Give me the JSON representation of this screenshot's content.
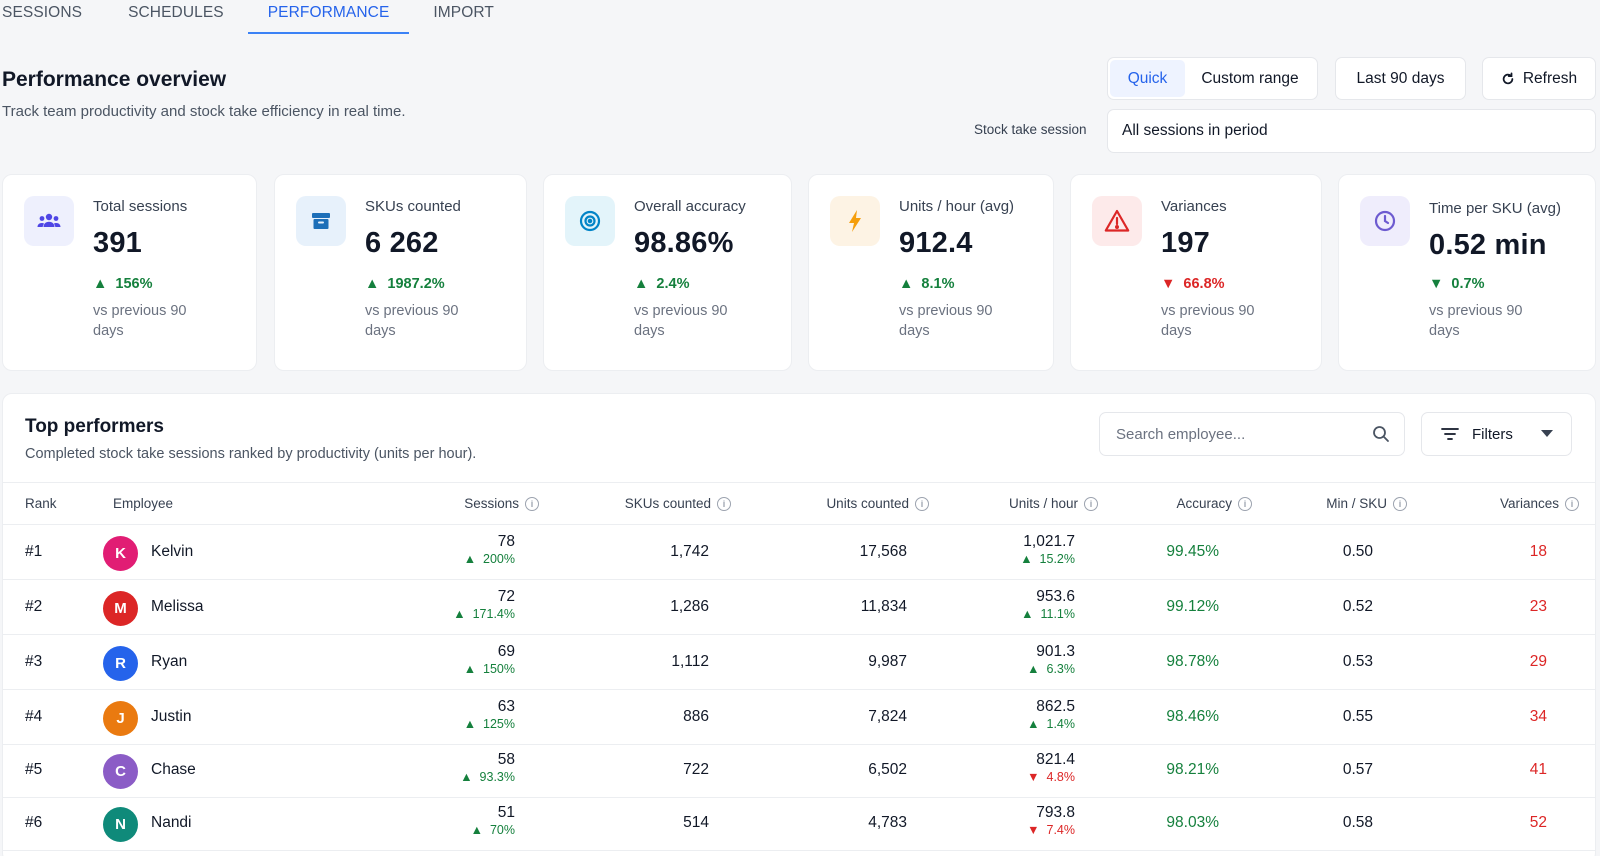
{
  "tabs": [
    "SESSIONS",
    "SCHEDULES",
    "PERFORMANCE",
    "IMPORT"
  ],
  "header": {
    "title": "Performance overview",
    "subtitle": "Track team productivity and stock take efficiency in real time.",
    "quick_label": "Quick",
    "custom_label": "Custom range",
    "period_label": "Last 90 days",
    "refresh_label": "Refresh",
    "session_label": "Stock take session",
    "session_value": "All sessions in period"
  },
  "kpis": [
    {
      "label": "Total sessions",
      "value": "391",
      "delta": "156%",
      "direction": "up",
      "note": "vs previous 90 days",
      "icon": "users-icon"
    },
    {
      "label": "SKUs counted",
      "value": "6 262",
      "delta": "1987.2%",
      "direction": "up",
      "note": "vs previous 90 days",
      "icon": "archive-box-icon"
    },
    {
      "label": "Overall accuracy",
      "value": "98.86%",
      "delta": "2.4%",
      "direction": "up",
      "note": "vs previous 90 days",
      "icon": "target-icon"
    },
    {
      "label": "Units / hour (avg)",
      "value": "912.4",
      "delta": "8.1%",
      "direction": "up",
      "note": "vs previous 90 days",
      "icon": "lightning-icon"
    },
    {
      "label": "Variances",
      "value": "197",
      "delta": "66.8%",
      "direction": "down",
      "note": "vs previous 90 days",
      "icon": "warning-icon"
    },
    {
      "label": "Time per SKU (avg)",
      "value": "0.52 min",
      "delta": "0.7%",
      "direction": "down",
      "note": "vs previous 90 days",
      "icon": "clock-icon"
    }
  ],
  "top_performers": {
    "title": "Top performers",
    "subtitle": "Completed stock take sessions ranked by productivity (units per hour).",
    "search_placeholder": "Search employee...",
    "filters_label": "Filters",
    "columns": [
      "Rank",
      "Employee",
      "Sessions",
      "SKUs counted",
      "Units counted",
      "Units / hour",
      "Accuracy",
      "Min / SKU",
      "Variances"
    ],
    "rows": [
      {
        "rank": "#1",
        "initial": "K",
        "name": "Kelvin",
        "color": "#e11d74",
        "sessions": "78",
        "sessions_delta": "200%",
        "sessions_dir": "up",
        "skus": "1,742",
        "units": "17,568",
        "uph": "1,021.7",
        "uph_delta": "15.2%",
        "uph_dir": "up",
        "accuracy": "99.45%",
        "min_sku": "0.50",
        "variances": "18"
      },
      {
        "rank": "#2",
        "initial": "M",
        "name": "Melissa",
        "color": "#dc2626",
        "sessions": "72",
        "sessions_delta": "171.4%",
        "sessions_dir": "up",
        "skus": "1,286",
        "units": "11,834",
        "uph": "953.6",
        "uph_delta": "11.1%",
        "uph_dir": "up",
        "accuracy": "99.12%",
        "min_sku": "0.52",
        "variances": "23"
      },
      {
        "rank": "#3",
        "initial": "R",
        "name": "Ryan",
        "color": "#2563eb",
        "sessions": "69",
        "sessions_delta": "150%",
        "sessions_dir": "up",
        "skus": "1,112",
        "units": "9,987",
        "uph": "901.3",
        "uph_delta": "6.3%",
        "uph_dir": "up",
        "accuracy": "98.78%",
        "min_sku": "0.53",
        "variances": "29"
      },
      {
        "rank": "#4",
        "initial": "J",
        "name": "Justin",
        "color": "#ea7a10",
        "sessions": "63",
        "sessions_delta": "125%",
        "sessions_dir": "up",
        "skus": "886",
        "units": "7,824",
        "uph": "862.5",
        "uph_delta": "1.4%",
        "uph_dir": "up",
        "accuracy": "98.46%",
        "min_sku": "0.55",
        "variances": "34"
      },
      {
        "rank": "#5",
        "initial": "C",
        "name": "Chase",
        "color": "#8b5cc6",
        "sessions": "58",
        "sessions_delta": "93.3%",
        "sessions_dir": "up",
        "skus": "722",
        "units": "6,502",
        "uph": "821.4",
        "uph_delta": "4.8%",
        "uph_dir": "down",
        "accuracy": "98.21%",
        "min_sku": "0.57",
        "variances": "41"
      },
      {
        "rank": "#6",
        "initial": "N",
        "name": "Nandi",
        "color": "#0f8a7a",
        "sessions": "51",
        "sessions_delta": "70%",
        "sessions_dir": "up",
        "skus": "514",
        "units": "4,783",
        "uph": "793.8",
        "uph_delta": "7.4%",
        "uph_dir": "down",
        "accuracy": "98.03%",
        "min_sku": "0.58",
        "variances": "52"
      }
    ]
  }
}
